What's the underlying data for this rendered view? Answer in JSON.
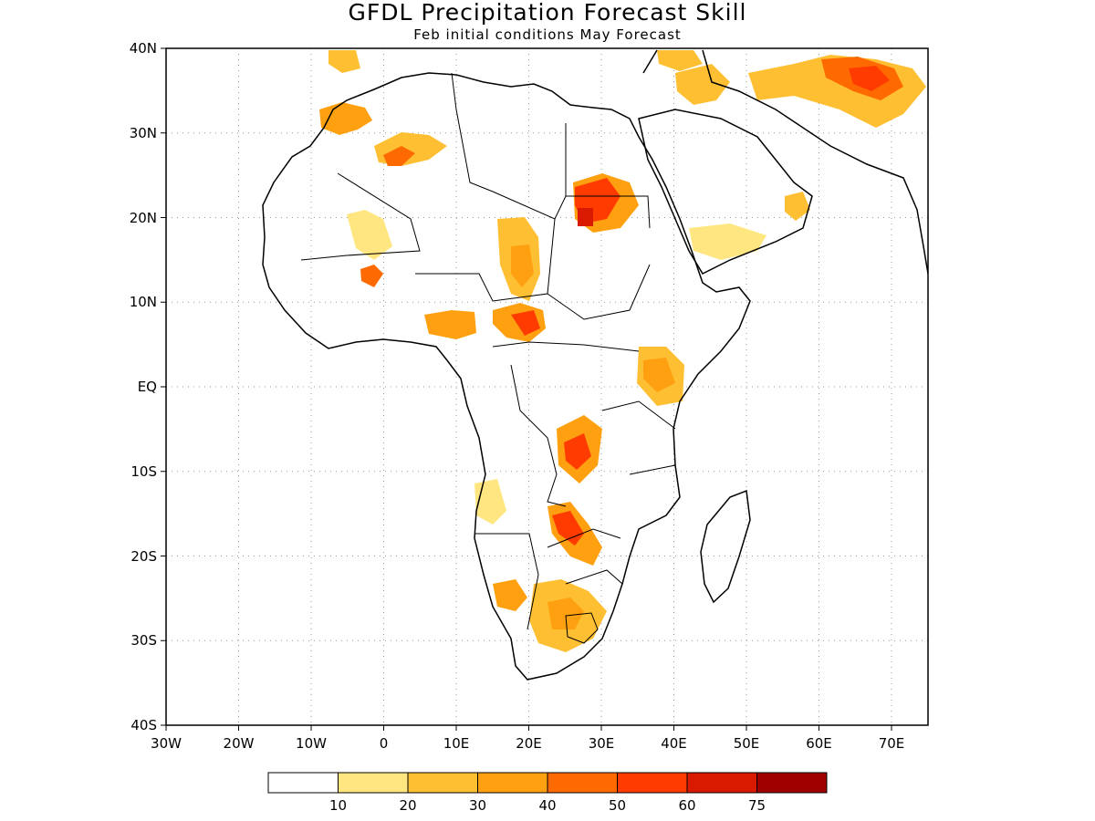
{
  "map": {
    "title": "GFDL Precipitation Forecast Skill",
    "subtitle": "Feb initial conditions  May Forecast",
    "lon_labels": [
      "30W",
      "20W",
      "10W",
      "0",
      "10E",
      "20E",
      "30E",
      "40E",
      "50E",
      "60E",
      "70E"
    ],
    "lat_labels": [
      "40N",
      "30N",
      "20N",
      "10N",
      "EQ",
      "10S",
      "20S",
      "30S",
      "40S"
    ],
    "lon_range": [
      -30,
      75
    ],
    "lat_range": [
      -40,
      40
    ],
    "grid": "dotted"
  },
  "colorbar": {
    "labels": [
      "10",
      "20",
      "30",
      "40",
      "50",
      "60",
      "75"
    ],
    "colors": [
      "#ffffff",
      "#ffe680",
      "#ffbf33",
      "#ffa010",
      "#ff6a00",
      "#ff3b00",
      "#d91a00",
      "#a00000"
    ]
  }
}
